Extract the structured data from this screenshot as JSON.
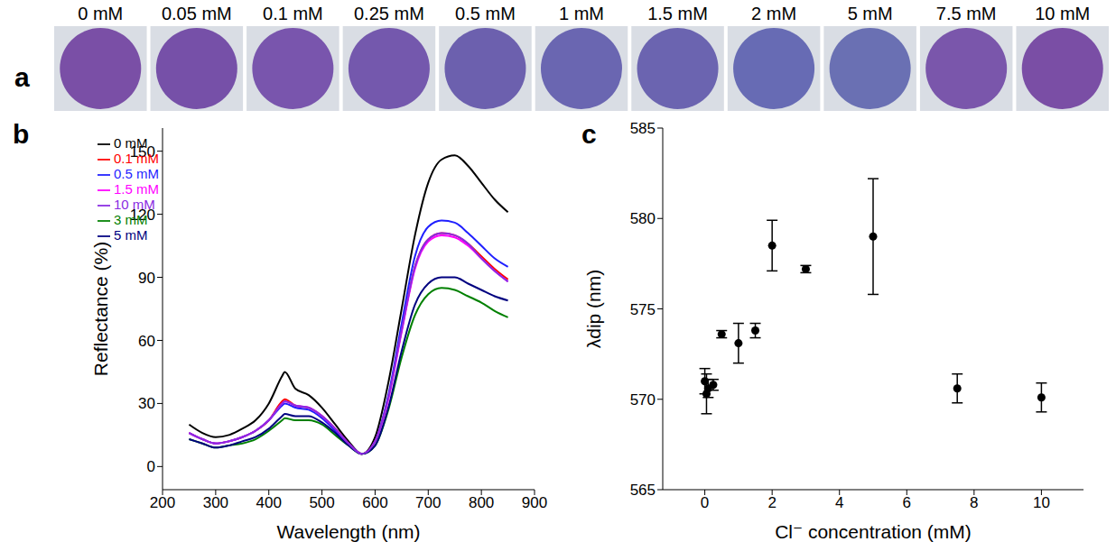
{
  "chart_data": [
    {
      "panel": "a",
      "type": "image_row",
      "labels": [
        "0 mM",
        "0.05 mM",
        "0.1 mM",
        "0.25 mM",
        "0.5 mM",
        "1 mM",
        "1.5 mM",
        "2 mM",
        "5 mM",
        "7.5 mM",
        "10 mM"
      ],
      "colors": [
        "#7a4fa6",
        "#7650a8",
        "#7955ad",
        "#7458ad",
        "#6c60ae",
        "#6a66b1",
        "#6b64b0",
        "#676bb4",
        "#6a70b3",
        "#7a56ab",
        "#7a4ea5"
      ]
    },
    {
      "panel": "b",
      "type": "line",
      "x_label": "Wavelength (nm)",
      "y_label": "Reflectance (%)",
      "x": [
        250,
        275,
        300,
        325,
        350,
        375,
        400,
        425,
        430,
        450,
        475,
        500,
        525,
        550,
        575,
        600,
        625,
        650,
        675,
        700,
        725,
        750,
        775,
        800,
        825,
        850
      ],
      "series": [
        {
          "name": "0 mM",
          "color": "#000000",
          "values": [
            20,
            16,
            14,
            15,
            18,
            22,
            30,
            43,
            45,
            37,
            34,
            28,
            20,
            12,
            6,
            14,
            40,
            75,
            110,
            135,
            146,
            148,
            143,
            135,
            127,
            121
          ]
        },
        {
          "name": "0.1 mM",
          "color": "#ff0000",
          "values": [
            16,
            13,
            11,
            12,
            14,
            17,
            22,
            31,
            32,
            29,
            28,
            24,
            18,
            11,
            6,
            12,
            33,
            65,
            95,
            108,
            111,
            110,
            106,
            100,
            94,
            89
          ]
        },
        {
          "name": "0.5 mM",
          "color": "#1f1fff",
          "values": [
            16,
            13,
            11,
            12,
            14,
            17,
            22,
            29,
            30,
            28,
            27,
            23,
            17,
            11,
            6,
            12,
            34,
            68,
            100,
            114,
            117,
            116,
            111,
            105,
            99,
            95
          ]
        },
        {
          "name": "1.5 mM",
          "color": "#ff00ff",
          "values": [
            16,
            13,
            11,
            12,
            14,
            17,
            22,
            30,
            31,
            29,
            28,
            24,
            18,
            11,
            6,
            12,
            32,
            64,
            94,
            107,
            110,
            109,
            105,
            99,
            93,
            88
          ]
        },
        {
          "name": "3 mM",
          "color": "#008000",
          "values": [
            13,
            11,
            9,
            10,
            11,
            13,
            17,
            22,
            23,
            22,
            22,
            20,
            15,
            10,
            6,
            10,
            27,
            52,
            72,
            82,
            85,
            84,
            81,
            78,
            74,
            71
          ]
        },
        {
          "name": "5 mM",
          "color": "#000080",
          "values": [
            13,
            11,
            9,
            10,
            12,
            14,
            18,
            24,
            25,
            24,
            24,
            21,
            16,
            10,
            6,
            10,
            28,
            55,
            77,
            87,
            90,
            90,
            87,
            84,
            81,
            79
          ]
        },
        {
          "name": "10 mM",
          "color": "#8a2be2",
          "values": [
            16,
            13,
            11,
            12,
            14,
            17,
            22,
            30,
            31,
            29,
            28,
            24,
            18,
            11,
            6,
            12,
            33,
            65,
            95,
            108,
            111,
            110,
            106,
            99,
            93,
            88
          ]
        }
      ],
      "xlim": [
        200,
        900
      ],
      "xticks": [
        200,
        300,
        400,
        500,
        600,
        700,
        800,
        900
      ],
      "ylim": [
        -11,
        161
      ],
      "yticks": [
        0,
        30,
        60,
        90,
        120,
        150
      ],
      "legend": "top-left"
    },
    {
      "panel": "c",
      "type": "scatter",
      "x_label": "Cl⁻ concentration (mM)",
      "y_label": "λdip (nm)",
      "x": [
        0,
        0.05,
        0.1,
        0.25,
        0.5,
        1,
        1.5,
        2,
        3,
        5,
        7.5,
        10
      ],
      "values": [
        571.0,
        570.3,
        570.6,
        570.8,
        573.6,
        573.1,
        573.8,
        578.5,
        577.2,
        579.0,
        570.6,
        570.1
      ],
      "errors": [
        0.7,
        1.1,
        0.5,
        0.3,
        0.2,
        1.1,
        0.4,
        1.4,
        0.2,
        3.2,
        0.8,
        0.8
      ],
      "color": "#000000",
      "xlim": [
        -1.25,
        11.25
      ],
      "xticks": [
        0,
        2,
        4,
        6,
        8,
        10
      ],
      "ylim": [
        565,
        585
      ],
      "yticks": [
        565,
        570,
        575,
        580,
        585
      ]
    }
  ]
}
